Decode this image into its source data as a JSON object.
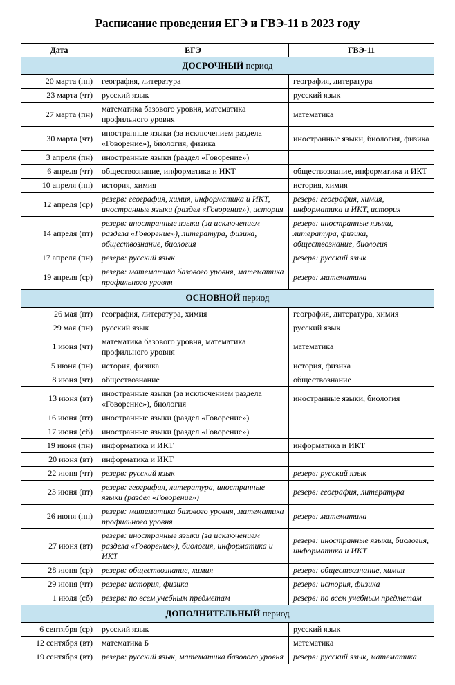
{
  "title": "Расписание проведения ЕГЭ и ГВЭ-11 в 2023 году",
  "columns": {
    "date": "Дата",
    "ege": "ЕГЭ",
    "gve": "ГВЭ-11"
  },
  "colors": {
    "section_bg": "#c5e3f0",
    "border": "#000000",
    "text": "#000000",
    "page_bg": "#ffffff"
  },
  "sections": [
    {
      "heading_bold": "ДОСРОЧНЫЙ",
      "heading_rest": "период",
      "rows": [
        {
          "date": "20 марта (пн)",
          "ege": "география, литература",
          "gve": "география, литература"
        },
        {
          "date": "23 марта (чт)",
          "ege": "русский язык",
          "gve": "русский язык"
        },
        {
          "date": "27 марта (пн)",
          "ege": "математика базового уровня, математика профильного уровня",
          "gve": "математика"
        },
        {
          "date": "30 марта (чт)",
          "ege": "иностранные языки (за исключением раздела «Говорение»), биология, физика",
          "gve": "иностранные языки, биология, физика"
        },
        {
          "date": "3 апреля (пн)",
          "ege": "иностранные языки (раздел «Говорение»)",
          "gve": ""
        },
        {
          "date": "6 апреля (чт)",
          "ege": "обществознание, информатика и ИКТ",
          "gve": "обществознание, информатика и ИКТ"
        },
        {
          "date": "10 апреля (пн)",
          "ege": "история, химия",
          "gve": "история, химия"
        },
        {
          "date": "12 апреля (ср)",
          "ege": "резерв: география, химия, информатика и ИКТ, иностранные языки (раздел «Говорение»), история",
          "gve": "резерв: география, химия, информатика и ИКТ, история",
          "italic": true
        },
        {
          "date": "14 апреля (пт)",
          "ege": "резерв: иностранные языки (за исключением раздела «Говорение»), литература, физика, обществознание, биология",
          "gve": "резерв: иностранные языки, литература, физика, обществознание, биология",
          "italic": true
        },
        {
          "date": "17 апреля (пн)",
          "ege": "резерв: русский язык",
          "gve": "резерв: русский язык",
          "italic": true
        },
        {
          "date": "19 апреля (ср)",
          "ege": "резерв: математика базового уровня, математика профильного уровня",
          "gve": "резерв: математика",
          "italic": true
        }
      ]
    },
    {
      "heading_bold": "ОСНОВНОЙ",
      "heading_rest": "период",
      "rows": [
        {
          "date": "26 мая (пт)",
          "ege": "география, литература, химия",
          "gve": "география, литература, химия"
        },
        {
          "date": "29 мая (пн)",
          "ege": "русский язык",
          "gve": "русский язык"
        },
        {
          "date": "1 июня (чт)",
          "ege": "математика базового уровня, математика профильного уровня",
          "gve": "математика"
        },
        {
          "date": "5 июня (пн)",
          "ege": "история, физика",
          "gve": "история, физика"
        },
        {
          "date": "8 июня (чт)",
          "ege": "обществознание",
          "gve": "обществознание"
        },
        {
          "date": "13 июня (вт)",
          "ege": "иностранные языки (за исключением раздела «Говорение»), биология",
          "gve": "иностранные языки, биология"
        },
        {
          "date": "16 июня (пт)",
          "ege": "иностранные языки (раздел «Говорение»)",
          "gve": ""
        },
        {
          "date": "17 июня (сб)",
          "ege": "иностранные языки (раздел «Говорение»)",
          "gve": ""
        },
        {
          "date": "19 июня (пн)",
          "ege": "информатика и ИКТ",
          "gve": "информатика и ИКТ"
        },
        {
          "date": "20 июня (вт)",
          "ege": "информатика и ИКТ",
          "gve": ""
        },
        {
          "date": "22 июня (чт)",
          "ege": "резерв: русский язык",
          "gve": "резерв: русский язык",
          "italic": true
        },
        {
          "date": "23 июня (пт)",
          "ege": "резерв: география, литература, иностранные языки (раздел «Говорение»)",
          "gve": "резерв: география, литература",
          "italic": true
        },
        {
          "date": "26 июня (пн)",
          "ege": "резерв: математика базового уровня, математика профильного уровня",
          "gve": "резерв: математика",
          "italic": true
        },
        {
          "date": "27 июня (вт)",
          "ege": "резерв: иностранные языки (за исключением раздела «Говорение»), биология, информатика и ИКТ",
          "gve": "резерв: иностранные языки, биология, информатика и ИКТ",
          "italic": true
        },
        {
          "date": "28 июня (ср)",
          "ege": "резерв: обществознание, химия",
          "gve": "резерв: обществознание, химия",
          "italic": true
        },
        {
          "date": "29 июня (чт)",
          "ege": "резерв: история, физика",
          "gve": "резерв: история, физика",
          "italic": true
        },
        {
          "date": "1 июля (сб)",
          "ege": "резерв: по всем учебным предметам",
          "gve": "резерв: по всем учебным предметам",
          "italic": true
        }
      ]
    },
    {
      "heading_bold": "ДОПОЛНИТЕЛЬНЫЙ",
      "heading_rest": "период",
      "rows": [
        {
          "date": "6 сентября (ср)",
          "ege": "русский язык",
          "gve": "русский язык"
        },
        {
          "date": "12 сентября (вт)",
          "ege": "математика Б",
          "gve": "математика"
        },
        {
          "date": "19 сентября (вт)",
          "ege": "резерв: русский язык, математика базового уровня",
          "gve": "резерв: русский язык, математика",
          "italic": true
        }
      ]
    }
  ]
}
